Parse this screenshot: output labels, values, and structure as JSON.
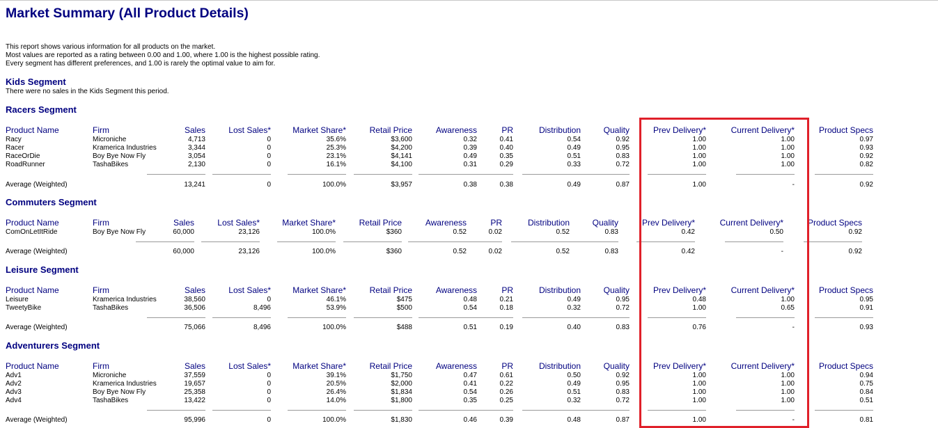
{
  "title": "Market Summary (All Product Details)",
  "intro": [
    "This report shows various information for all products on the market.",
    "Most values are reported as a rating between 0.00 and 1.00, where 1.00 is the highest possible rating.",
    "Every segment has different preferences, and 1.00 is rarely the optimal value to aim for."
  ],
  "columns": [
    "Product Name",
    "Firm",
    "Sales",
    "Lost Sales*",
    "Market Share*",
    "Retail Price",
    "Awareness",
    "PR",
    "Distribution",
    "Quality",
    "Prev Delivery*",
    "Current Delivery*",
    "Product Specs"
  ],
  "average_label": "Average (Weighted)",
  "segments": {
    "kids": {
      "title": "Kids Segment",
      "note": "There were no sales in the Kids Segment this period."
    },
    "racers": {
      "title": "Racers Segment",
      "rows": [
        [
          "Racy",
          "Microniche",
          "4,713",
          "0",
          "35.6%",
          "$3,600",
          "0.32",
          "0.41",
          "0.54",
          "0.92",
          "1.00",
          "1.00",
          "0.97"
        ],
        [
          "Racer",
          "Kramerica Industries",
          "3,344",
          "0",
          "25.3%",
          "$4,200",
          "0.39",
          "0.40",
          "0.49",
          "0.95",
          "1.00",
          "1.00",
          "0.93"
        ],
        [
          "RaceOrDie",
          "Boy Bye Now Fly",
          "3,054",
          "0",
          "23.1%",
          "$4,141",
          "0.49",
          "0.35",
          "0.51",
          "0.83",
          "1.00",
          "1.00",
          "0.92"
        ],
        [
          "RoadRunner",
          "TashaBikes",
          "2,130",
          "0",
          "16.1%",
          "$4,100",
          "0.31",
          "0.29",
          "0.33",
          "0.72",
          "1.00",
          "1.00",
          "0.82"
        ]
      ],
      "average": [
        "",
        "13,241",
        "0",
        "100.0%",
        "$3,957",
        "0.38",
        "0.38",
        "0.49",
        "0.87",
        "1.00",
        "-",
        "0.92"
      ]
    },
    "commuters": {
      "title": "Commuters Segment",
      "rows": [
        [
          "ComOnLetItRide",
          "Boy Bye Now Fly",
          "60,000",
          "23,126",
          "100.0%",
          "$360",
          "0.52",
          "0.02",
          "0.52",
          "0.83",
          "0.42",
          "0.50",
          "0.92"
        ]
      ],
      "average": [
        "",
        "60,000",
        "23,126",
        "100.0%",
        "$360",
        "0.52",
        "0.02",
        "0.52",
        "0.83",
        "0.42",
        "-",
        "0.92"
      ]
    },
    "leisure": {
      "title": "Leisure Segment",
      "rows": [
        [
          "Leisure",
          "Kramerica Industries",
          "38,560",
          "0",
          "46.1%",
          "$475",
          "0.48",
          "0.21",
          "0.49",
          "0.95",
          "0.48",
          "1.00",
          "0.95"
        ],
        [
          "TweetyBike",
          "TashaBikes",
          "36,506",
          "8,496",
          "53.9%",
          "$500",
          "0.54",
          "0.18",
          "0.32",
          "0.72",
          "1.00",
          "0.65",
          "0.91"
        ]
      ],
      "average": [
        "",
        "75,066",
        "8,496",
        "100.0%",
        "$488",
        "0.51",
        "0.19",
        "0.40",
        "0.83",
        "0.76",
        "-",
        "0.93"
      ]
    },
    "adventurers": {
      "title": "Adventurers Segment",
      "rows": [
        [
          "Adv1",
          "Microniche",
          "37,559",
          "0",
          "39.1%",
          "$1,750",
          "0.47",
          "0.61",
          "0.50",
          "0.92",
          "1.00",
          "1.00",
          "0.94"
        ],
        [
          "Adv2",
          "Kramerica Industries",
          "19,657",
          "0",
          "20.5%",
          "$2,000",
          "0.41",
          "0.22",
          "0.49",
          "0.95",
          "1.00",
          "1.00",
          "0.75"
        ],
        [
          "Adv3",
          "Boy Bye Now Fly",
          "25,358",
          "0",
          "26.4%",
          "$1,834",
          "0.54",
          "0.26",
          "0.51",
          "0.83",
          "1.00",
          "1.00",
          "0.84"
        ],
        [
          "Adv4",
          "TashaBikes",
          "13,422",
          "0",
          "14.0%",
          "$1,800",
          "0.35",
          "0.25",
          "0.32",
          "0.72",
          "1.00",
          "1.00",
          "0.51"
        ]
      ],
      "average": [
        "",
        "95,996",
        "0",
        "100.0%",
        "$1,830",
        "0.46",
        "0.39",
        "0.48",
        "0.87",
        "1.00",
        "-",
        "0.81"
      ]
    }
  },
  "colors": {
    "header": "#000080",
    "highlight_box": "#e0202a"
  }
}
